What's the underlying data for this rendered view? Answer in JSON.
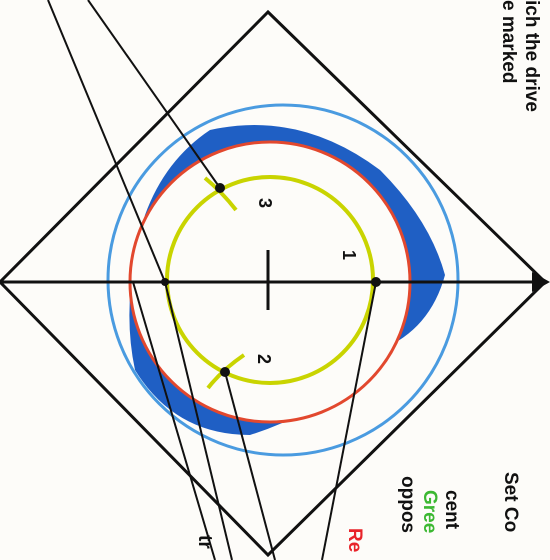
{
  "left_edge_text": {
    "line1": "ich the drive",
    "line2": "e marked"
  },
  "right_edge_text": {
    "line1": "Set Co",
    "line2": "cent",
    "line3": "Gree",
    "line4": "oppos",
    "line5": "Re",
    "line6": "tr"
  },
  "markers": {
    "one": "1",
    "two": "2",
    "three": "3"
  },
  "colors": {
    "outline": "#111111",
    "blue_fill": "#1f5fc4",
    "light_blue_circle": "#4a9be0",
    "red_circle": "#e2482e",
    "yellow_circle": "#c9d400",
    "green_text": "#3cb832",
    "red_text": "#e8242a"
  }
}
